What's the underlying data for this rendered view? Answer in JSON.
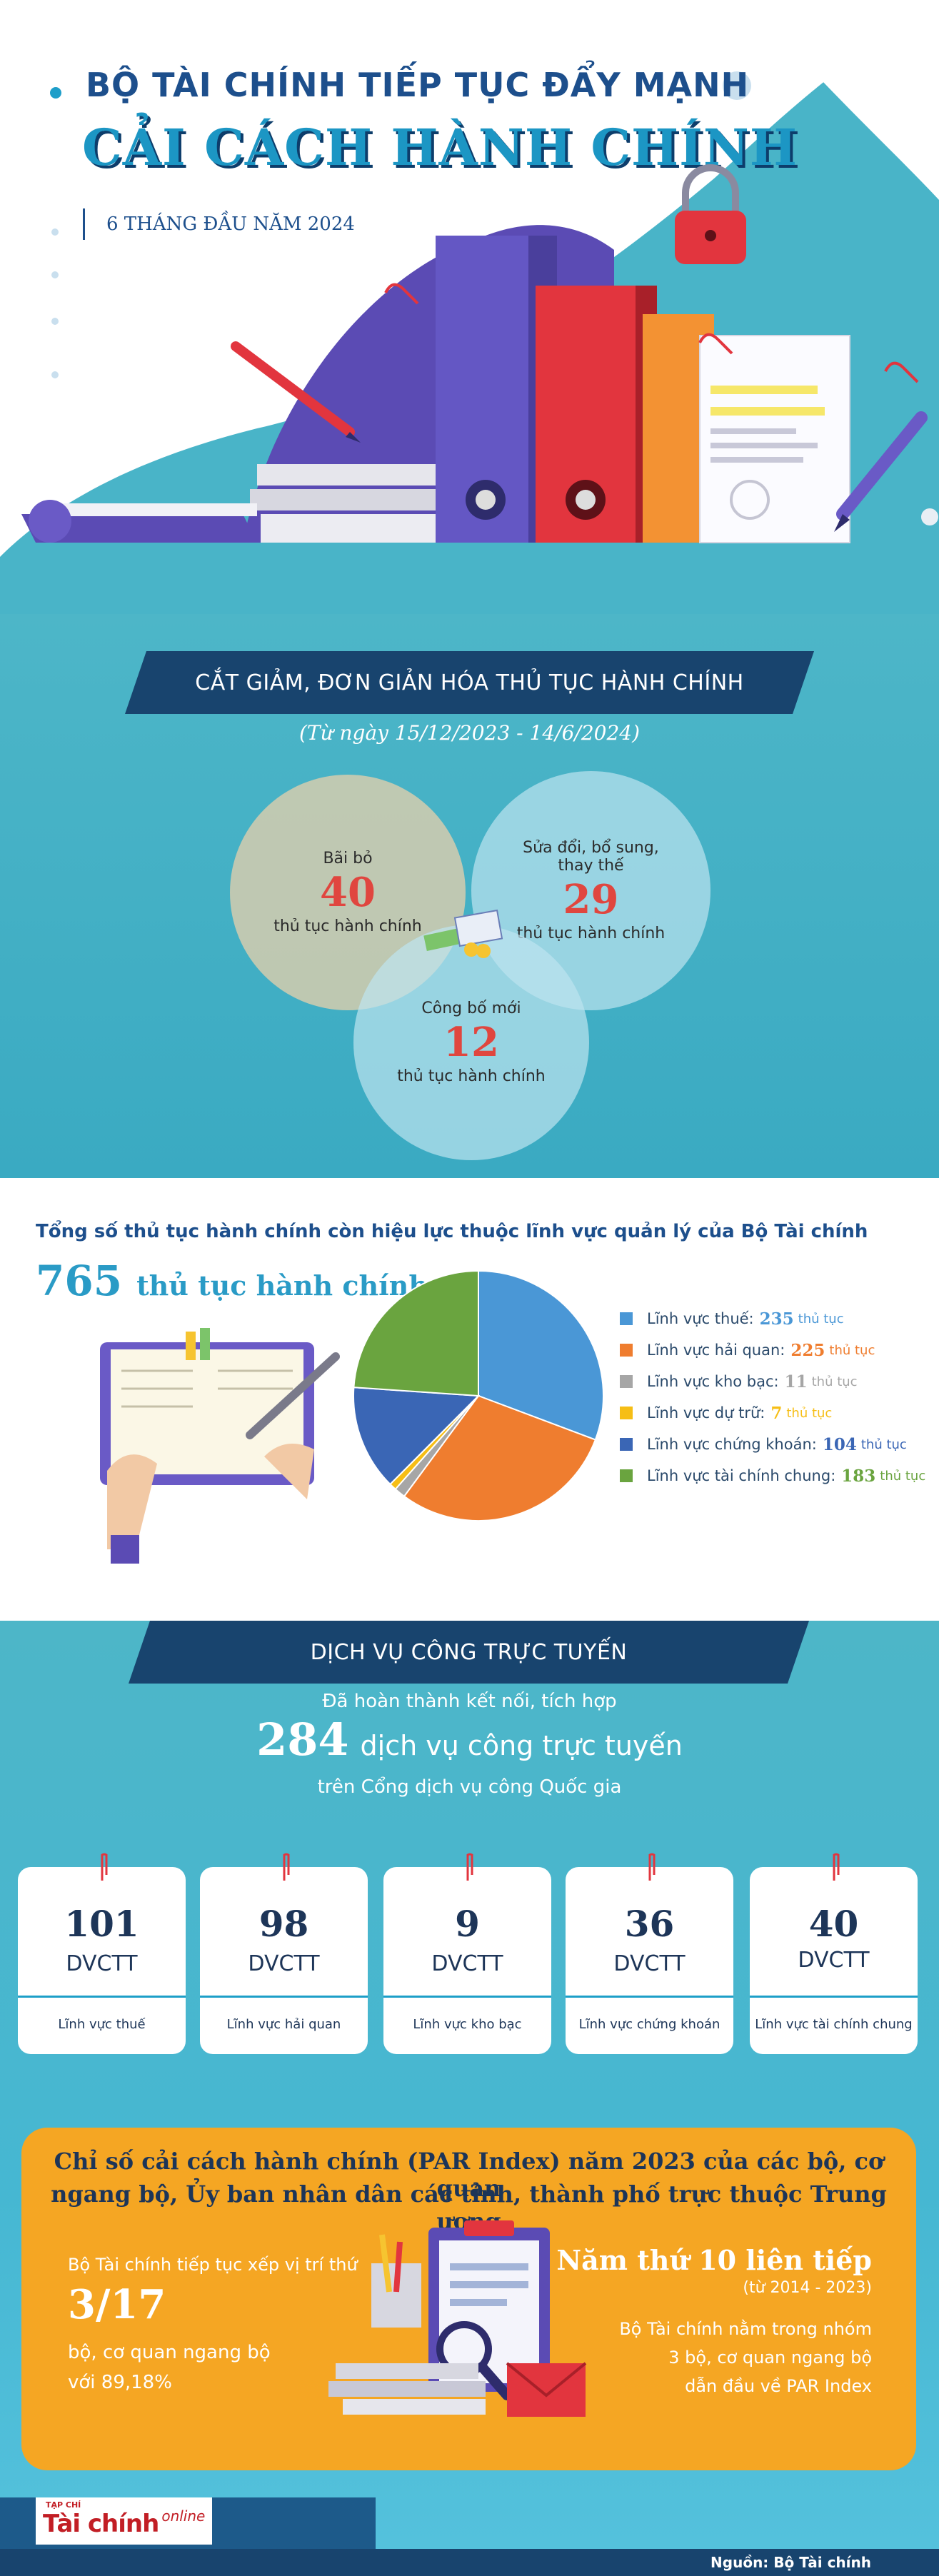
{
  "header": {
    "title_line1": "BỘ TÀI CHÍNH TIẾP TỤC ĐẨY MẠNH",
    "title_line2": "CẢI CÁCH HÀNH CHÍNH",
    "subtitle": "6 THÁNG ĐẦU NĂM 2024"
  },
  "section1": {
    "banner": "CẮT GIẢM, ĐƠN GIẢN HÓA THỦ TỤC HÀNH CHÍNH",
    "range": "(Từ ngày 15/12/2023 - 14/6/2024)",
    "circles": [
      {
        "label": "Bãi bỏ",
        "value": "40",
        "unit": "thủ tục hành chính"
      },
      {
        "label_l1": "Sửa đổi, bổ sung,",
        "label_l2": "thay thế",
        "value": "29",
        "unit": "thủ tục hành chính"
      },
      {
        "label": "Công bố mới",
        "value": "12",
        "unit": "thủ tục hành chính"
      }
    ]
  },
  "section2": {
    "heading": "Tổng số thủ tục hành chính còn hiệu lực thuộc lĩnh vực quản lý của Bộ Tài chính",
    "total_value": "765",
    "total_unit": "thủ tục hành chính"
  },
  "chart_data": {
    "type": "pie",
    "title": "",
    "series": [
      {
        "name": "Lĩnh vực thuế:",
        "value": 235,
        "unit": "thủ tục",
        "color": "#4a97d6"
      },
      {
        "name": "Lĩnh vực hải quan:",
        "value": 225,
        "unit": "thủ tục",
        "color": "#ef7d2f"
      },
      {
        "name": "Lĩnh vực kho bạc:",
        "value": 11,
        "unit": "thủ tục",
        "color": "#a6a6a6"
      },
      {
        "name": "Lĩnh vực dự trữ:",
        "value": 7,
        "unit": "thủ tục",
        "color": "#f6be15"
      },
      {
        "name": "Lĩnh vực chứng khoán:",
        "value": 104,
        "unit": "thủ tục",
        "color": "#3a66b5"
      },
      {
        "name": "Lĩnh vực tài chính chung:",
        "value": 183,
        "unit": "thủ tục",
        "color": "#6aa43f"
      }
    ],
    "legend": "right"
  },
  "section3": {
    "banner": "DỊCH VỤ CÔNG TRỰC TUYẾN",
    "intro1": "Đã hoàn thành kết nối, tích hợp",
    "intro_value": "284",
    "intro_unit": "dịch vụ công trực tuyến",
    "intro3": "trên Cổng dịch vụ công Quốc gia",
    "cards": [
      {
        "value": "101",
        "unit": "DVCTT",
        "label": "Lĩnh vực thuế"
      },
      {
        "value": "98",
        "unit": "DVCTT",
        "label": "Lĩnh vực hải quan"
      },
      {
        "value": "9",
        "unit": "DVCTT",
        "label": "Lĩnh vực kho bạc"
      },
      {
        "value": "36",
        "unit": "DVCTT",
        "label": "Lĩnh vực chứng khoán"
      },
      {
        "value": "40",
        "unit": "DVCTT",
        "label": "Lĩnh vực tài chính chung"
      }
    ]
  },
  "par": {
    "title_l1": "Chỉ số cải cách hành chính (PAR Index) năm 2023 của các bộ, cơ quan",
    "title_l2": "ngang bộ, Ủy ban nhân dân các tỉnh, thành phố trực thuộc Trung ương",
    "left_l1": "Bộ Tài chính tiếp tục xếp vị trí thứ",
    "left_rank": "3/17",
    "left_l3": "bộ, cơ quan ngang bộ",
    "left_l4": "với 89,18%",
    "right_title": "Năm thứ 10 liên tiếp",
    "right_years": "(từ 2014 - 2023)",
    "right_l1": "Bộ Tài chính nằm trong nhóm",
    "right_l2": "3 bộ, cơ quan ngang bộ",
    "right_l3": "dẫn đầu về PAR Index"
  },
  "footer": {
    "logo_small": "TẠP CHÍ",
    "logo_main": "Tài chính",
    "logo_online": "online",
    "source": "Nguồn: Bộ Tài chính"
  }
}
